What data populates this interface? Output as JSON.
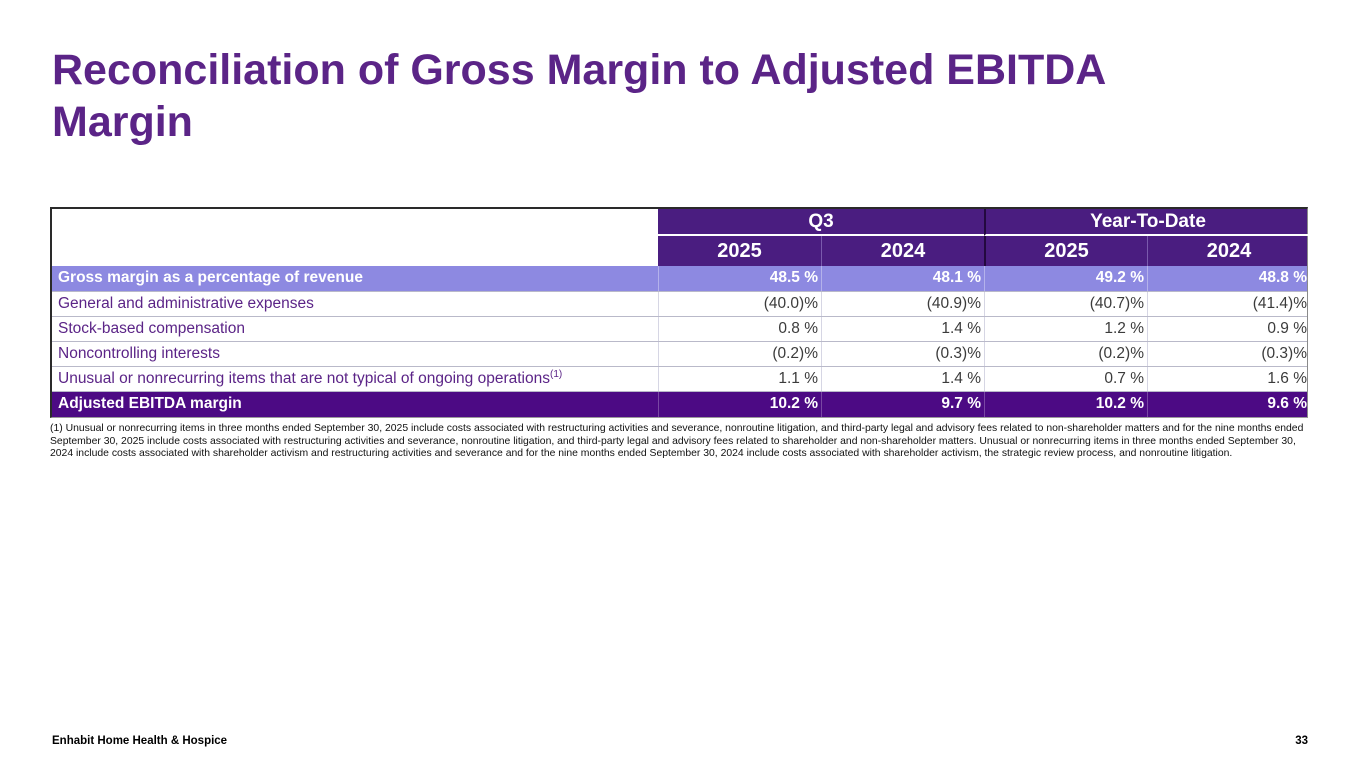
{
  "slide": {
    "title": "Reconciliation of Gross Margin to Adjusted EBITDA Margin",
    "footer_brand": "Enhabit Home Health & Hospice",
    "page_number": "33"
  },
  "table": {
    "groups": [
      {
        "label": "Q3"
      },
      {
        "label": "Year-To-Date"
      }
    ],
    "year_columns": [
      "2025",
      "2024",
      "2025",
      "2024"
    ],
    "rows": [
      {
        "label": "Gross margin as a percentage of revenue",
        "values": [
          "48.5 %",
          "48.1 %",
          "49.2 %",
          "48.8 %"
        ],
        "style": "highlight-light"
      },
      {
        "label": "General and administrative expenses",
        "values": [
          "(40.0)%",
          "(40.9)%",
          "(40.7)%",
          "(41.4)%"
        ],
        "style": "normal"
      },
      {
        "label": "Stock-based compensation",
        "values": [
          "0.8 %",
          "1.4 %",
          "1.2 %",
          "0.9 %"
        ],
        "style": "normal"
      },
      {
        "label": "Noncontrolling interests",
        "values": [
          "(0.2)%",
          "(0.3)%",
          "(0.2)%",
          "(0.3)%"
        ],
        "style": "normal"
      },
      {
        "label": "Unusual or nonrecurring items that are not typical of ongoing operations",
        "label_sup": "(1)",
        "values": [
          "1.1 %",
          "1.4 %",
          "0.7 %",
          "1.6 %"
        ],
        "style": "normal"
      },
      {
        "label": "Adjusted EBITDA margin",
        "values": [
          "10.2 %",
          "9.7 %",
          "10.2 %",
          "9.6 %"
        ],
        "style": "highlight-dark"
      }
    ]
  },
  "footnote": {
    "text": "(1) Unusual or nonrecurring items in three months ended September 30, 2025 include costs associated with restructuring activities and severance, nonroutine litigation, and third-party legal and advisory fees related to non-shareholder matters and for the nine months ended September 30, 2025 include costs associated with restructuring activities and severance, nonroutine litigation, and third-party legal and advisory fees related to shareholder and non-shareholder matters. Unusual or nonrecurring items in three months ended September 30, 2024 include costs associated with shareholder activism and restructuring activities and severance and for the nine months ended September 30, 2024 include costs associated with shareholder activism, the strategic review process, and nonroutine litigation."
  },
  "colors": {
    "accent_purple": "#5b2487",
    "header_bg": "#4a1d80",
    "highlight_light_bg": "#8d89e1",
    "highlight_dark_bg": "#4c0a84"
  }
}
